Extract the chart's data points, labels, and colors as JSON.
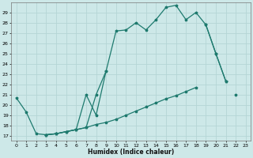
{
  "xlabel": "Humidex (Indice chaleur)",
  "background_color": "#cde8e8",
  "grid_color": "#b5d5d5",
  "line_color": "#1e7a6e",
  "xlim": [
    -0.5,
    23.5
  ],
  "ylim": [
    16.5,
    30.0
  ],
  "xtick_labels": [
    "0",
    "1",
    "2",
    "3",
    "4",
    "5",
    "6",
    "7",
    "8",
    "9",
    "10",
    "11",
    "12",
    "13",
    "14",
    "15",
    "16",
    "17",
    "18",
    "19",
    "20",
    "21",
    "22",
    "23"
  ],
  "ytick_labels": [
    "17",
    "18",
    "19",
    "20",
    "21",
    "22",
    "23",
    "24",
    "25",
    "26",
    "27",
    "28",
    "29"
  ],
  "ytick_vals": [
    17,
    18,
    19,
    20,
    21,
    22,
    23,
    24,
    25,
    26,
    27,
    28,
    29
  ],
  "line1_x": [
    0,
    1,
    2,
    3,
    4,
    5,
    6,
    7,
    8,
    9,
    10,
    11,
    12,
    13,
    14,
    15,
    16,
    17,
    18,
    19,
    20,
    21
  ],
  "line1_y": [
    20.7,
    19.3,
    17.2,
    17.1,
    17.2,
    17.4,
    17.6,
    17.8,
    21.0,
    23.3,
    27.2,
    27.3,
    28.0,
    27.3,
    28.3,
    29.5,
    29.7,
    28.3,
    29.0,
    27.8,
    25.0,
    22.3
  ],
  "line2_x": [
    3,
    4,
    5,
    6,
    7,
    8,
    9,
    19,
    20,
    21
  ],
  "line2_y": [
    17.1,
    17.2,
    17.4,
    17.6,
    21.0,
    19.0,
    23.3,
    27.8,
    25.0,
    22.3
  ],
  "line2_segments": [
    [
      0,
      6
    ],
    [
      7,
      9
    ]
  ],
  "line3_x": [
    3,
    4,
    5,
    6,
    7,
    8,
    9,
    10,
    11,
    12,
    13,
    14,
    15,
    16,
    17,
    18,
    22
  ],
  "line3_y": [
    17.1,
    17.2,
    17.4,
    17.6,
    17.8,
    18.1,
    18.3,
    18.6,
    19.0,
    19.4,
    19.8,
    20.2,
    20.6,
    20.9,
    21.3,
    21.7,
    21.0
  ]
}
